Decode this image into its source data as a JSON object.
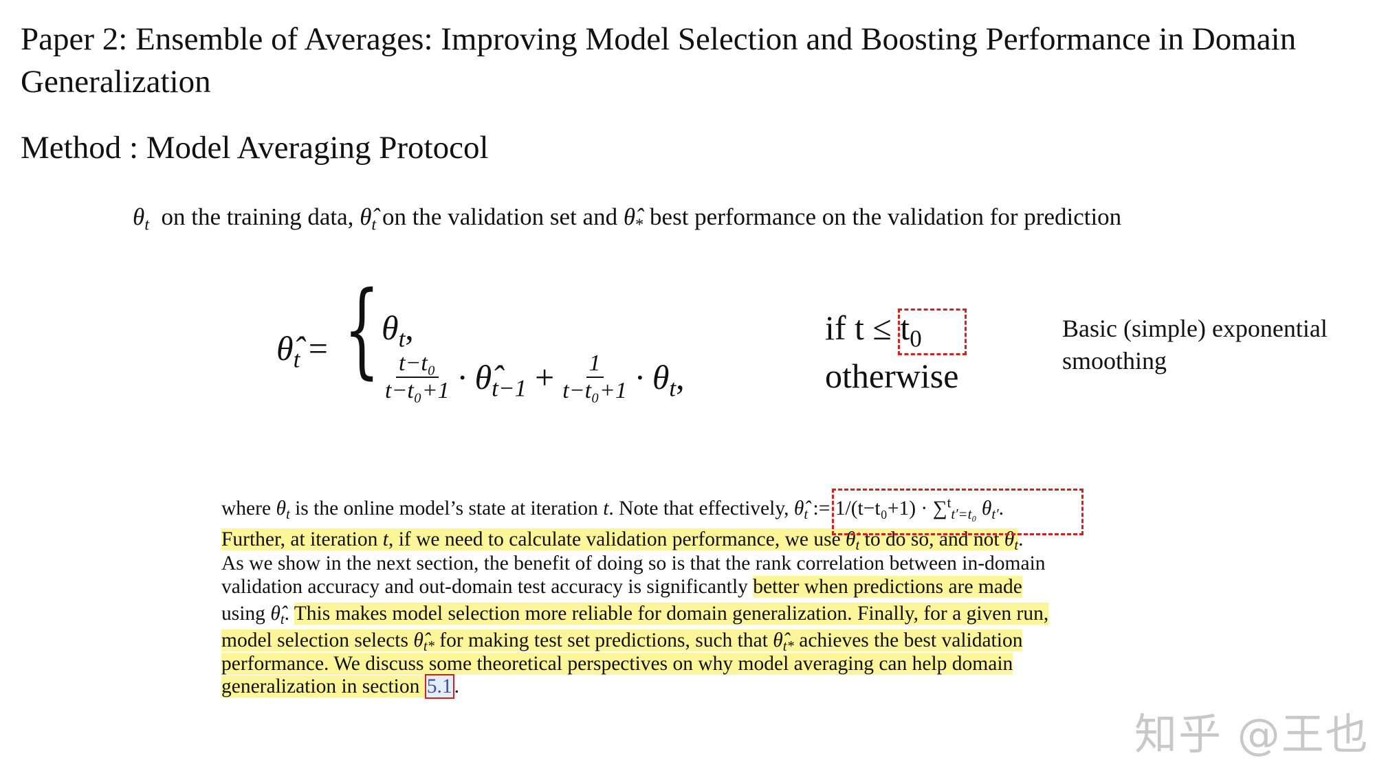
{
  "title": "Paper 2:  Ensemble of Averages: Improving Model Selection and Boosting Performance in Domain Generalization",
  "method": "Method :  Model Averaging Protocol",
  "theta_line": {
    "sym1": "θ",
    "sub1": "t",
    "text1": "  on the training data, ",
    "sym2": "θ̂",
    "sub2": "t",
    "text2": " on the validation set and ",
    "sym3": "θ̂",
    "sub3": "*",
    "text3": " best performance on the validation for prediction"
  },
  "equation": {
    "lhs": "θ̂",
    "lhs_sub": "t",
    "eq": " =",
    "brace": "{",
    "row1": {
      "sym": "θ",
      "sub": "t",
      "tail": ",",
      "cond": "if t ≤ t",
      "cond_sub": "0"
    },
    "row2": {
      "frac1_num": "t−t₀",
      "frac1_den": "t−t₀+1",
      "mid": "· θ̂",
      "mid_sub": "t−1",
      "plus": "+",
      "frac2_num": "1",
      "frac2_den": "t−t₀+1",
      "tail": "· θ",
      "tail_sub": "t",
      "comma": ",",
      "cond": "otherwise"
    }
  },
  "note": "Basic (simple) exponential smoothing",
  "paragraph": {
    "lines": [
      [
        {
          "t": "where "
        },
        {
          "m": "θ",
          "s": "t"
        },
        {
          "t": " is the online model’s state at iteration "
        },
        {
          "m": "t"
        },
        {
          "t": ". Note that effectively, "
        },
        {
          "m": "θ̂",
          "s": "t"
        },
        {
          "t": " := 1/(t−t₀+1) · ∑"
        },
        {
          "sup": "t"
        },
        {
          "s": "t′=t₀"
        },
        {
          "t": " "
        },
        {
          "m": "θ",
          "s": "t′"
        },
        {
          "t": "."
        }
      ],
      [
        {
          "t": "Further, at iteration ",
          "h": 1
        },
        {
          "m": "t",
          "h": 1
        },
        {
          "t": ", if we need to calculate validation performance, we use ",
          "h": 1
        },
        {
          "m": "θ̂",
          "s": "t",
          "h": 1
        },
        {
          "t": " to do so, and not ",
          "h": 1
        },
        {
          "m": "θ",
          "s": "t",
          "h": 1
        },
        {
          "t": "."
        }
      ],
      [
        {
          "t": "As we show in the next section, the benefit of doing so is that the rank correlation between in-domain"
        }
      ],
      [
        {
          "t": "validation accuracy and out-domain test accuracy is significantly "
        },
        {
          "t": "better when predictions are made",
          "h": 1
        }
      ],
      [
        {
          "t": "using "
        },
        {
          "m": "θ̂",
          "s": "t"
        },
        {
          "t": ". "
        },
        {
          "t": "This makes model selection more reliable for domain generalization. Finally, for a given run,",
          "h": 1
        }
      ],
      [
        {
          "t": "model selection selects ",
          "h": 1
        },
        {
          "m": "θ̂",
          "s": "t*",
          "h": 1
        },
        {
          "t": " for making test set predictions, such that ",
          "h": 1
        },
        {
          "m": "θ̂",
          "s": "t*",
          "h": 1
        },
        {
          "t": " achieves the best validation",
          "h": 1
        }
      ],
      [
        {
          "t": "performance. We discuss some theoretical perspectives on why model averaging can help domain",
          "h": 1
        }
      ],
      [
        {
          "t": "generalization in section ",
          "h": 1
        },
        {
          "ref": "5.1"
        },
        {
          "t": "."
        }
      ]
    ]
  },
  "watermark": "知乎 @王也",
  "colors": {
    "highlight": "#fdf59a",
    "annotation_box": "#d42020",
    "link": "#3a4fa8"
  }
}
